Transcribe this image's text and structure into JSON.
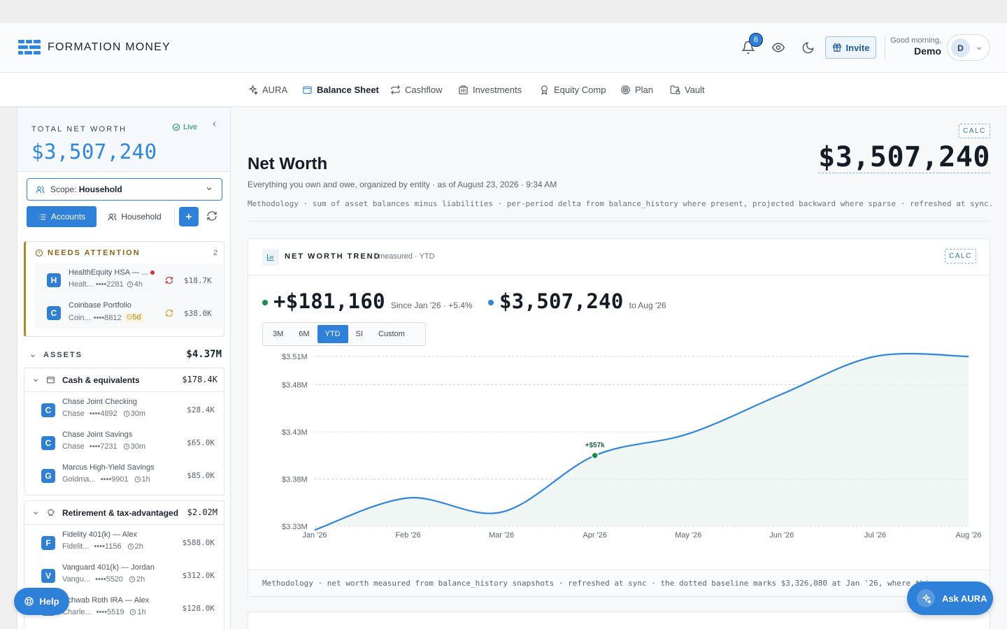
{
  "header": {
    "brand": "FORMATION MONEY",
    "notifications_count": "6",
    "invite_label": "Invite",
    "greeting": "Good morning,",
    "user_name": "Demo",
    "avatar_initial": "D"
  },
  "nav": [
    {
      "label": "AURA",
      "icon": "sparkle-icon",
      "active": false
    },
    {
      "label": "Balance Sheet",
      "icon": "wallet-icon",
      "active": true
    },
    {
      "label": "Cashflow",
      "icon": "repeat-icon",
      "active": false
    },
    {
      "label": "Investments",
      "icon": "building-icon",
      "active": false
    },
    {
      "label": "Equity Comp",
      "icon": "award-icon",
      "active": false
    },
    {
      "label": "Plan",
      "icon": "target-icon",
      "active": false
    },
    {
      "label": "Vault",
      "icon": "folder-lock-icon",
      "active": false
    }
  ],
  "sidebar": {
    "total_label": "TOTAL NET WORTH",
    "total_value": "$3,507,240",
    "live_label": "Live",
    "scope_prefix": "Scope:",
    "scope_value": "Household",
    "seg_accounts": "Accounts",
    "seg_household": "Household",
    "needs_title": "NEEDS ATTENTION",
    "needs_count": "2",
    "needs_items": [
      {
        "initial": "H",
        "name": "HealthEquity HSA — ...",
        "inst": "Healt...",
        "mask": "••••2281",
        "age": "4h",
        "amount": "$18.7K"
      },
      {
        "initial": "C",
        "name": "Coinbase Portfolio",
        "inst": "Coin...",
        "mask": "••••8812",
        "age": "5d",
        "amount": "$38.0K"
      }
    ],
    "assets_label": "ASSETS",
    "assets_total": "$4.37M",
    "groups": [
      {
        "label": "Cash & equivalents",
        "total": "$178.4K",
        "items": [
          {
            "initial": "C",
            "name": "Chase Joint Checking",
            "inst": "Chase",
            "mask": "••••4892",
            "age": "30m",
            "amount": "$28.4K"
          },
          {
            "initial": "C",
            "name": "Chase Joint Savings",
            "inst": "Chase",
            "mask": "••••7231",
            "age": "30m",
            "amount": "$65.0K"
          },
          {
            "initial": "G",
            "name": "Marcus High-Yield Savings",
            "inst": "Goldma...",
            "mask": "••••9901",
            "age": "1h",
            "amount": "$85.0K"
          }
        ]
      },
      {
        "label": "Retirement & tax-advantaged",
        "total": "$2.02M",
        "items": [
          {
            "initial": "F",
            "name": "Fidelity 401(k) — Alex",
            "inst": "Fidelit...",
            "mask": "••••1156",
            "age": "2h",
            "amount": "$588.0K"
          },
          {
            "initial": "V",
            "name": "Vanguard 401(k) — Jordan",
            "inst": "Vangu...",
            "mask": "••••5520",
            "age": "2h",
            "amount": "$312.0K"
          },
          {
            "initial": "S",
            "name": "Schwab Roth IRA — Alex",
            "inst": "Charle...",
            "mask": "••••5519",
            "age": "1h",
            "amount": "$128.0K"
          }
        ]
      }
    ]
  },
  "main": {
    "calc_label": "CALC",
    "title": "Net Worth",
    "subtitle": "Everything you own and owe, organized by entity · as of August 23, 2026 · 9:34 AM",
    "methodology": "Methodology · sum of asset balances minus liabilities · per-period delta from balance_history where present, projected backward where sparse · refreshed at sync.",
    "big_value": "$3,507,240"
  },
  "trend": {
    "title": "NET WORTH TREND",
    "meta": "measured · YTD",
    "calc_label": "CALC",
    "delta_value": "+$181,160",
    "delta_sub": "Since Jan '26 · +5.4%",
    "current_value": "$3,507,240",
    "current_sub": "to Aug '26",
    "ranges": [
      "3M",
      "6M",
      "YTD",
      "SI",
      "Custom"
    ],
    "active_range": "YTD",
    "footer": "Methodology · net worth measured from balance_history snapshots · refreshed at sync · the dotted baseline marks $3,326,080 at Jan '26, where this ..."
  },
  "chart_data": {
    "type": "area",
    "title": "",
    "xlabel": "",
    "ylabel": "",
    "x": [
      "Jan '26",
      "Feb '26",
      "Mar '26",
      "Apr '26",
      "May '26",
      "Jun '26",
      "Jul '26",
      "Aug '26"
    ],
    "ytick_labels": [
      "$3.51M",
      "$3.48M",
      "$3.43M",
      "$3.38M",
      "$3.33M"
    ],
    "ytick_values": [
      3.51,
      3.48,
      3.43,
      3.38,
      3.33
    ],
    "ylim": [
      3.33,
      3.51
    ],
    "series": [
      {
        "values": [
          3.326,
          3.36,
          3.345,
          3.405,
          3.428,
          3.47,
          3.51,
          3.51
        ],
        "color": "#2f86de"
      }
    ],
    "annotation": {
      "x": "Apr '26",
      "y": 3.405,
      "label": "+$57k"
    },
    "grid": true
  },
  "fab": {
    "help_label": "Help",
    "ask_label": "Ask AURA"
  }
}
